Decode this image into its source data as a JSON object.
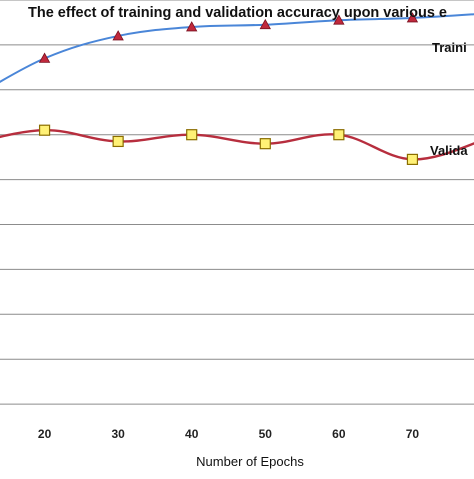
{
  "chart_data": {
    "type": "line",
    "title": "The effect of training and validation accuracy upon various e",
    "xlabel": "Number of Epochs",
    "ylabel": "",
    "x": [
      10,
      20,
      30,
      40,
      50,
      60,
      70,
      80
    ],
    "x_tick_labels": [
      "20",
      "30",
      "40",
      "50",
      "60",
      "70"
    ],
    "xlim": [
      10,
      80
    ],
    "ylim": [
      0,
      100
    ],
    "grid": true,
    "series": [
      {
        "name": "Traini",
        "color": "#4a86d8",
        "marker": "triangle",
        "marker_color": "#c0283c",
        "values": [
          78,
          87,
          92,
          94,
          94.5,
          95.5,
          96,
          97
        ]
      },
      {
        "name": "Valida",
        "color": "#b72e3e",
        "marker": "square",
        "marker_color": "#fff176",
        "values": [
          68,
          71,
          68.5,
          70,
          68,
          70,
          64.5,
          69
        ]
      }
    ]
  }
}
